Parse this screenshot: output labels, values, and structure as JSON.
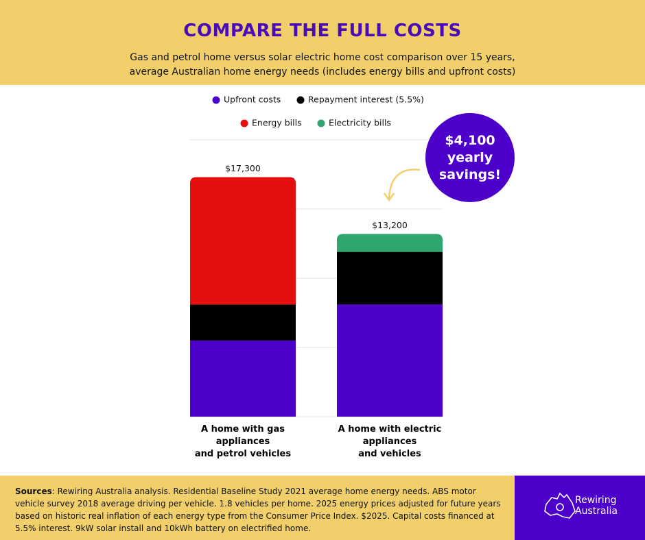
{
  "header": {
    "title": "COMPARE THE FULL COSTS",
    "subtitle": "Gas and petrol home versus solar electric home cost comparison over 15 years, average Australian home energy needs (includes energy bills and upfront costs)"
  },
  "chart_data": {
    "type": "stacked_bar",
    "categories": [
      "A home with gas\nappliances\nand petrol vehicles",
      "A home with electric\nappliances\nand vehicles"
    ],
    "series": [
      {
        "name": "Upfront costs",
        "color": "#4d00c9",
        "values": [
          5500,
          8100
        ]
      },
      {
        "name": "Repayment interest (5.5%)",
        "color": "#000000",
        "values": [
          2600,
          3800
        ]
      },
      {
        "name": "Energy bills",
        "color": "#e50f0f",
        "values": [
          9200,
          null
        ]
      },
      {
        "name": "Electricity bills",
        "color": "#2ea66e",
        "values": [
          null,
          1300
        ]
      }
    ],
    "totals": [
      17300,
      13200
    ],
    "total_labels": [
      "$17,300",
      "$13,200"
    ],
    "ylim": [
      0,
      20000
    ],
    "yticks": [
      0,
      5000,
      10000,
      15000,
      20000
    ],
    "grid": true,
    "annotation": "$4,100 yearly savings!"
  },
  "footer": {
    "sources_label": "Sources",
    "sources_text": ": Rewiring Australia analysis. Residential Baseline Study 2021 average home energy needs. ABS motor vehicle survey 2018 average driving per vehicle. 1.8 vehicles per home. 2025 energy prices adjusted for future years based on historic real inflation of each energy type from the Consumer Price Index. $2025. Capital costs financed at 5.5% interest. 9kW solar install and 10kWh battery on electrified home.",
    "logo": "Rewiring\nAustralia"
  }
}
